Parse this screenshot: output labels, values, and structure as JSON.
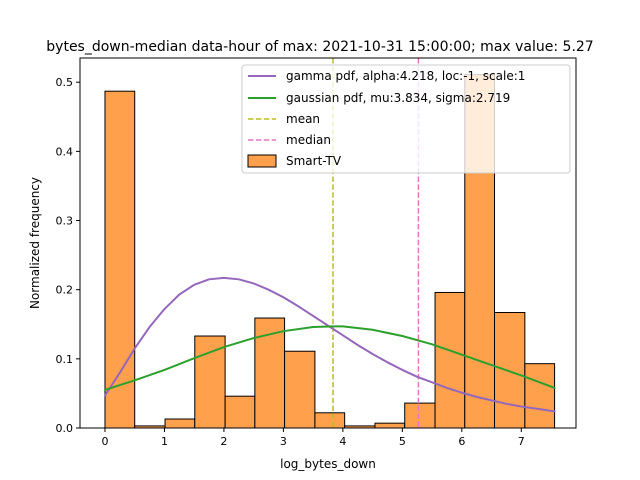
{
  "chart_data": {
    "type": "bar",
    "title": "bytes_down-median data-hour of max: 2021-10-31 15:00:00; max value: 5.27",
    "xlabel": "log_bytes_down",
    "ylabel": "Normalized frequency",
    "xlim": [
      -0.42,
      7.92
    ],
    "ylim": [
      0,
      0.535
    ],
    "xticks": [
      0,
      1,
      2,
      3,
      4,
      5,
      6,
      7
    ],
    "yticks": [
      0.0,
      0.1,
      0.2,
      0.3,
      0.4,
      0.5
    ],
    "xtick_labels": [
      "0",
      "1",
      "2",
      "3",
      "4",
      "5",
      "6",
      "7"
    ],
    "ytick_labels": [
      "0.0",
      "0.1",
      "0.2",
      "0.3",
      "0.4",
      "0.5"
    ],
    "grid": false,
    "legend_position": "top-right",
    "histogram": {
      "name": "Smart-TV",
      "color": "#FFA04D",
      "edge_color": "#000000",
      "bins": [
        {
          "x0": 0.0,
          "x1": 0.5,
          "value": 0.487
        },
        {
          "x0": 0.5,
          "x1": 1.01,
          "value": 0.003
        },
        {
          "x0": 1.01,
          "x1": 1.51,
          "value": 0.013
        },
        {
          "x0": 1.51,
          "x1": 2.02,
          "value": 0.133
        },
        {
          "x0": 2.02,
          "x1": 2.52,
          "value": 0.046
        },
        {
          "x0": 2.52,
          "x1": 3.02,
          "value": 0.159
        },
        {
          "x0": 3.02,
          "x1": 3.53,
          "value": 0.111
        },
        {
          "x0": 3.53,
          "x1": 4.03,
          "value": 0.022
        },
        {
          "x0": 4.03,
          "x1": 4.54,
          "value": 0.003
        },
        {
          "x0": 4.54,
          "x1": 5.04,
          "value": 0.007
        },
        {
          "x0": 5.04,
          "x1": 5.55,
          "value": 0.036
        },
        {
          "x0": 5.55,
          "x1": 6.05,
          "value": 0.196
        },
        {
          "x0": 6.05,
          "x1": 6.55,
          "value": 0.511
        },
        {
          "x0": 6.55,
          "x1": 7.06,
          "value": 0.167
        },
        {
          "x0": 7.06,
          "x1": 7.56,
          "value": 0.093
        }
      ]
    },
    "series": [
      {
        "name": "gamma pdf, alpha:4.218, loc:-1, scale:1",
        "color": "#9467BD",
        "style": "solid",
        "x": [
          0.0,
          0.25,
          0.5,
          0.75,
          1.0,
          1.25,
          1.5,
          1.75,
          2.0,
          2.25,
          2.5,
          2.75,
          3.0,
          3.25,
          3.5,
          3.75,
          4.0,
          4.25,
          4.5,
          4.75,
          5.0,
          5.25,
          5.5,
          5.75,
          6.0,
          6.25,
          6.5,
          6.75,
          7.0,
          7.25,
          7.56
        ],
        "y": [
          0.047,
          0.08,
          0.115,
          0.146,
          0.172,
          0.193,
          0.207,
          0.215,
          0.217,
          0.215,
          0.209,
          0.2,
          0.189,
          0.176,
          0.162,
          0.148,
          0.134,
          0.12,
          0.107,
          0.095,
          0.084,
          0.074,
          0.066,
          0.058,
          0.051,
          0.045,
          0.04,
          0.035,
          0.031,
          0.028,
          0.024
        ]
      },
      {
        "name": "gaussian pdf, mu:3.834, sigma:2.719",
        "color": "#2CA02C",
        "style": "solid",
        "x": [
          0.0,
          0.5,
          1.0,
          1.5,
          2.0,
          2.5,
          3.0,
          3.5,
          3.834,
          4.0,
          4.5,
          5.0,
          5.5,
          6.0,
          6.5,
          7.0,
          7.56
        ],
        "y": [
          0.055,
          0.069,
          0.084,
          0.101,
          0.117,
          0.13,
          0.14,
          0.146,
          0.147,
          0.147,
          0.142,
          0.133,
          0.121,
          0.106,
          0.091,
          0.076,
          0.058
        ]
      }
    ],
    "reference_lines": [
      {
        "name": "mean",
        "x": 3.834,
        "color": "#BCBD22",
        "style": "dashed"
      },
      {
        "name": "median",
        "x": 5.27,
        "color": "#E377C2",
        "style": "dashed"
      }
    ],
    "legend": [
      "gamma pdf, alpha:4.218, loc:-1, scale:1",
      "gaussian pdf, mu:3.834, sigma:2.719",
      "mean",
      "median",
      "Smart-TV"
    ]
  }
}
